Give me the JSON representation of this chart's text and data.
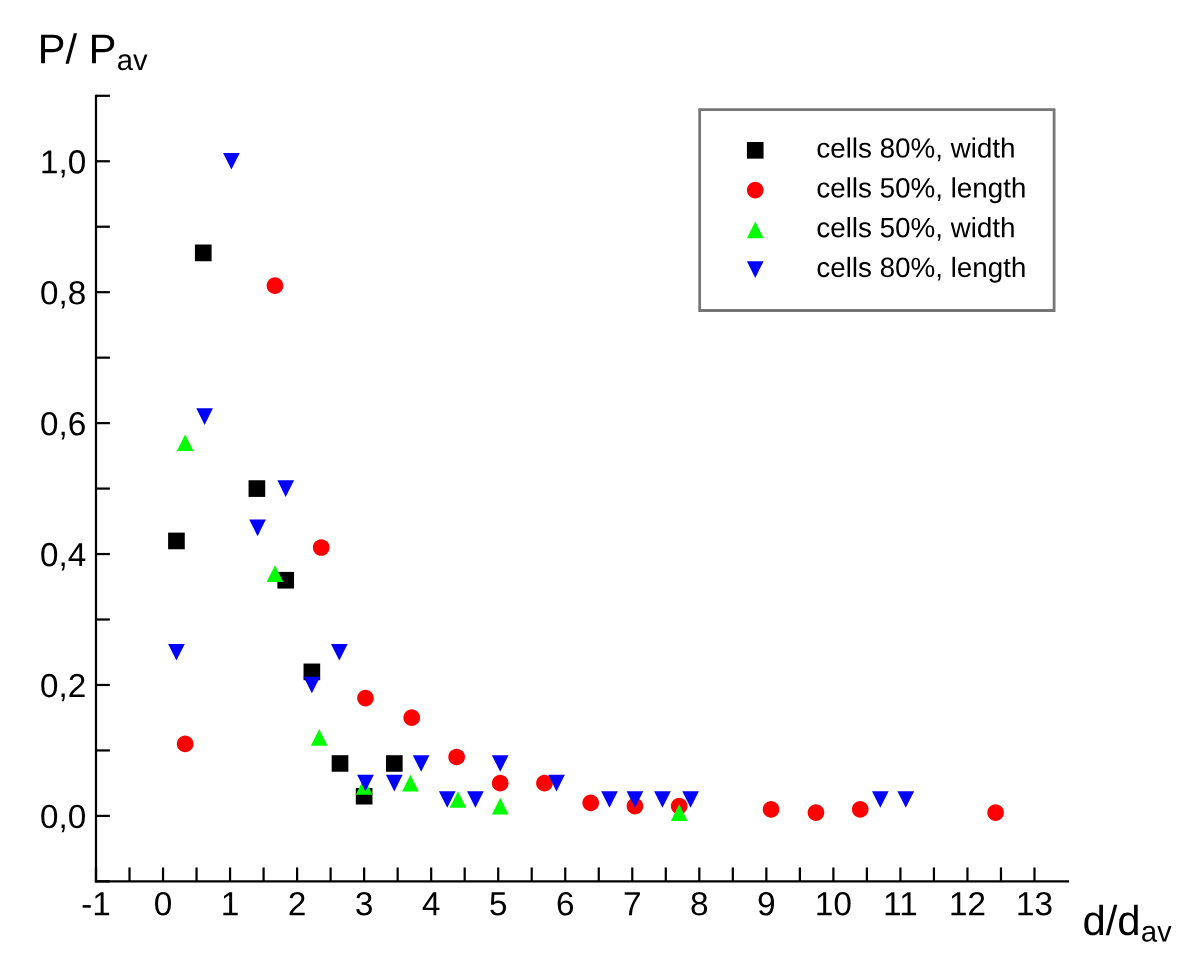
{
  "chart_data": {
    "type": "scatter",
    "xlabel": "d/d$_{av}$",
    "ylabel": "P/ P$_{av}$",
    "xlim": [
      -1,
      13.5
    ],
    "ylim": [
      -0.1,
      1.1
    ],
    "xticks": [
      -1,
      {
        "value": -0.5,
        "label": null
      },
      0,
      {
        "value": 0.5,
        "label": null
      },
      1,
      {
        "value": 1.5,
        "label": null
      },
      2,
      {
        "value": 2.5,
        "label": null
      },
      3,
      {
        "value": 3.5,
        "label": null
      },
      4,
      {
        "value": 4.5,
        "label": null
      },
      5,
      {
        "value": 5.5,
        "label": null
      },
      6,
      {
        "value": 6.5,
        "label": null
      },
      7,
      {
        "value": 7.5,
        "label": null
      },
      8,
      {
        "value": 8.5,
        "label": null
      },
      9,
      {
        "value": 9.5,
        "label": null
      },
      10,
      {
        "value": 10.5,
        "label": null
      },
      11,
      {
        "value": 11.5,
        "label": null
      },
      12,
      {
        "value": 12.5,
        "label": null
      },
      13
    ],
    "yticks": [
      {
        "value": -0.1,
        "label": null
      },
      {
        "value": 0,
        "label": "0,0"
      },
      {
        "value": 0.1,
        "label": null
      },
      {
        "value": 0.2,
        "label": "0,2"
      },
      {
        "value": 0.3,
        "label": null
      },
      {
        "value": 0.4,
        "label": "0,4"
      },
      {
        "value": 0.5,
        "label": null
      },
      {
        "value": 0.6,
        "label": "0,6"
      },
      {
        "value": 0.7,
        "label": null
      },
      {
        "value": 0.8,
        "label": "0,8"
      },
      {
        "value": 0.9,
        "label": null
      },
      {
        "value": 1.0,
        "label": "1,0"
      },
      {
        "value": 1.1,
        "label": null
      }
    ],
    "grid": false,
    "legend": "top right",
    "series": [
      {
        "name": "cells 80%, width",
        "color": "#000000",
        "marker": "square",
        "x": [
          0.2,
          0.6,
          1.4,
          1.83,
          2.22,
          2.64,
          3.0,
          3.45
        ],
        "values": [
          0.42,
          0.86,
          0.5,
          0.36,
          0.22,
          0.08,
          0.03,
          0.08
        ]
      },
      {
        "name": "cells 50%, length",
        "color": "#ff0000",
        "marker": "circle",
        "x": [
          0.33,
          1.67,
          2.36,
          3.02,
          3.71,
          4.38,
          5.03,
          5.69,
          6.38,
          7.04,
          7.7,
          9.07,
          9.74,
          10.4,
          12.42
        ],
        "values": [
          0.11,
          0.81,
          0.41,
          0.18,
          0.15,
          0.09,
          0.05,
          0.05,
          0.02,
          0.015,
          0.015,
          0.01,
          0.005,
          0.01,
          0.005
        ]
      },
      {
        "name": "cells 50%, width",
        "color": "#00ff00",
        "marker": "triangle",
        "x": [
          0.33,
          1.67,
          2.33,
          3.0,
          3.69,
          4.4,
          5.03,
          7.7
        ],
        "values": [
          0.57,
          0.37,
          0.12,
          0.045,
          0.05,
          0.025,
          0.015,
          0.005
        ]
      },
      {
        "name": "cells 80%, length",
        "color": "#0000ff",
        "marker": "triangle_down",
        "x": [
          0.2,
          0.62,
          1.02,
          1.41,
          1.83,
          2.22,
          2.63,
          3.02,
          3.45,
          3.85,
          4.24,
          4.66,
          5.03,
          5.87,
          6.66,
          7.04,
          7.45,
          7.87,
          10.7,
          11.08
        ],
        "values": [
          0.25,
          0.61,
          1.0,
          0.44,
          0.5,
          0.2,
          0.25,
          0.05,
          0.05,
          0.08,
          0.025,
          0.025,
          0.08,
          0.05,
          0.025,
          0.025,
          0.025,
          0.025,
          0.025,
          0.025
        ]
      }
    ]
  }
}
